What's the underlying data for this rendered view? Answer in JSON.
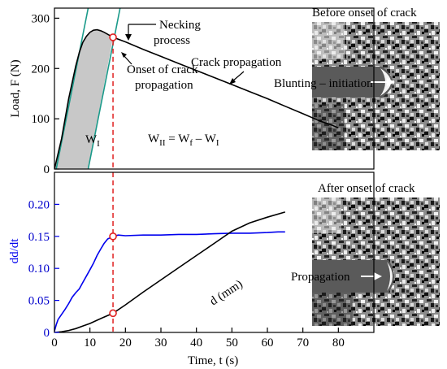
{
  "chart_data": [
    {
      "type": "area",
      "panel": "top",
      "ylabel": "Load, F (N)",
      "ylim": [
        0,
        320
      ],
      "yticks": [
        "0",
        "100",
        "200",
        "300"
      ],
      "xlim": [
        0,
        90
      ],
      "grid": false,
      "series": [
        {
          "name": "Load",
          "x": [
            0,
            2,
            4,
            6,
            7,
            8,
            9,
            10,
            11,
            12,
            13,
            14,
            15,
            16.5,
            20,
            25,
            30,
            35,
            40,
            45,
            50,
            55,
            60,
            65,
            70,
            75,
            78,
            80
          ],
          "values": [
            0,
            60,
            140,
            205,
            232,
            252,
            264,
            272,
            276,
            277,
            275,
            272,
            268,
            262,
            253,
            238,
            224,
            210,
            196,
            182,
            168,
            154,
            140,
            125,
            110,
            95,
            88,
            82
          ]
        }
      ],
      "tangent_lines": [
        {
          "x": [
            0.5,
            9.5
          ],
          "y": [
            0,
            320
          ]
        },
        {
          "x": [
            9.5,
            18.5
          ],
          "y": [
            0,
            320
          ]
        }
      ],
      "marker": {
        "x": 16.5,
        "y": 262
      },
      "area_label_main": "W",
      "area_label_sub": "I",
      "equation": {
        "lhs": "W",
        "lhs_sub": "II",
        "eq": " = W",
        "f_sub": "f",
        "minus": " – W",
        "rhs_sub": "I"
      },
      "annotations": {
        "necking_1": "Necking",
        "necking_2": "process",
        "onset_1": "Onset of crack",
        "onset_2": "propagation",
        "crack": "Crack propagation"
      }
    },
    {
      "type": "line",
      "panel": "bottom",
      "ylabel": "dd/dt",
      "xlabel": "Time, t (s)",
      "xlim": [
        0,
        90
      ],
      "ylim": [
        0,
        0.25
      ],
      "xticks": [
        "0",
        "10",
        "20",
        "30",
        "40",
        "50",
        "60",
        "70",
        "80"
      ],
      "yticks": [
        "0",
        "0.05",
        "0.10",
        "0.15",
        "0.20"
      ],
      "series": [
        {
          "name": "dd/dt",
          "color": "#0000ee",
          "x": [
            0,
            0.5,
            1,
            2,
            3,
            4,
            5,
            6,
            7,
            8,
            9,
            10,
            11,
            12,
            13,
            14,
            15,
            16.5,
            18,
            20,
            25,
            30,
            35,
            40,
            45,
            50,
            55,
            60,
            63,
            65
          ],
          "values": [
            0.002,
            0.012,
            0.02,
            0.028,
            0.036,
            0.045,
            0.055,
            0.062,
            0.068,
            0.078,
            0.088,
            0.098,
            0.108,
            0.12,
            0.13,
            0.139,
            0.146,
            0.15,
            0.152,
            0.151,
            0.152,
            0.152,
            0.153,
            0.153,
            0.154,
            0.155,
            0.155,
            0.156,
            0.157,
            0.157
          ]
        },
        {
          "name": "d (mm)",
          "color": "#000000",
          "x": [
            0,
            2,
            4,
            6,
            8,
            10,
            12,
            14,
            16.5,
            20,
            25,
            30,
            35,
            40,
            45,
            50,
            55,
            60,
            65
          ],
          "values": [
            0,
            0.001,
            0.003,
            0.006,
            0.01,
            0.014,
            0.019,
            0.024,
            0.03,
            0.043,
            0.063,
            0.082,
            0.101,
            0.12,
            0.139,
            0.158,
            0.171,
            0.18,
            0.188
          ]
        }
      ],
      "markers": [
        {
          "x": 16.5,
          "y": 0.15
        },
        {
          "x": 16.5,
          "y": 0.03
        }
      ],
      "vline_x": 16.5,
      "annotations": {
        "d_label": "d (mm)"
      }
    }
  ],
  "images": {
    "before_title": "Before onset of crack",
    "before_label": "Blunting – initiation",
    "after_title": "After onset of crack",
    "after_label": "Propagation"
  },
  "colors": {
    "tangent": "#1a9a8a",
    "marker": "#e02020",
    "vline": "#e02020",
    "fill": "#c8c8c8",
    "blue": "#0000ee"
  }
}
